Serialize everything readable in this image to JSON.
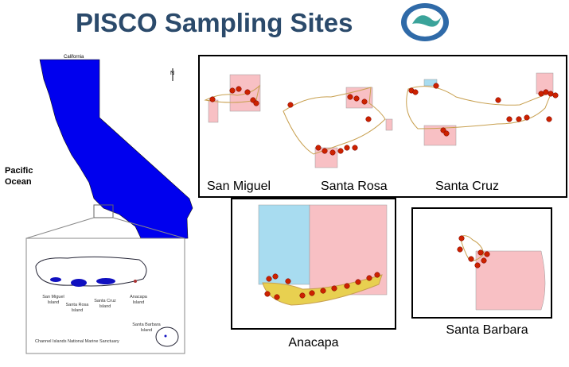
{
  "title": "PISCO Sampling Sites",
  "map": {
    "state_label": "California",
    "north": "N",
    "ocean_label": [
      "Pacific",
      "Ocean"
    ],
    "inset": {
      "islands": [
        [
          "San Miguel",
          "Island"
        ],
        [
          "Santa Rosa",
          "Island"
        ],
        [
          "Santa Cruz",
          "Island"
        ],
        [
          "Anacapa",
          "Island"
        ],
        [
          "Santa Barbara",
          "Island"
        ]
      ],
      "caption": "Channel Islands National Marine Sanctuary"
    }
  },
  "panels": [
    "San Miguel",
    "Santa Rosa",
    "Santa Cruz",
    "Anacapa",
    "Santa Barbara"
  ]
}
